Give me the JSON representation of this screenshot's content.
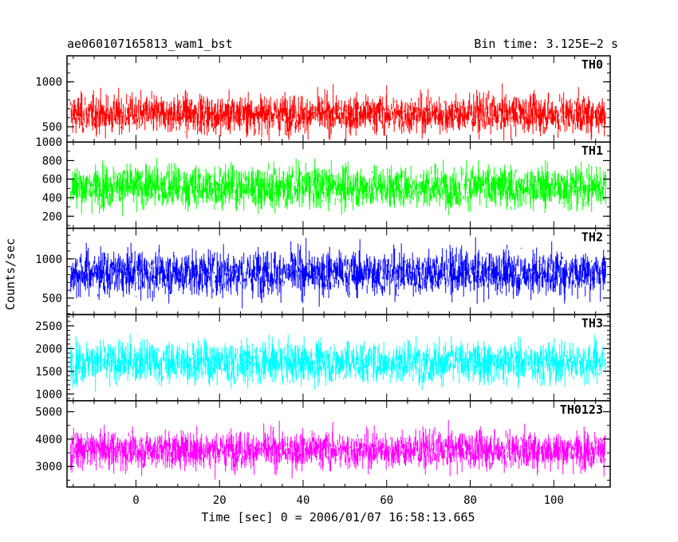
{
  "header": {
    "title": "ae060107165813_wam1_bst",
    "bin_time": "Bin time: 3.125E−2 s"
  },
  "chart_data": {
    "type": "line",
    "xlabel": "Time [sec] 0 = 2006/01/07 16:58:13.665",
    "ylabel": "Counts/sec",
    "xlim": [
      -16.5,
      113.5
    ],
    "x_data_range": [
      -15.6,
      112.4
    ],
    "xticks": [
      0,
      20,
      40,
      60,
      80,
      100
    ],
    "xtick_labels": [
      "0",
      "20",
      "40",
      "60",
      "80",
      "100"
    ],
    "x_minor_step": 5,
    "panels": [
      {
        "name": "TH0",
        "color": "#ff0000",
        "ylim": [
          330,
          1290
        ],
        "yticks": [
          500,
          1000
        ],
        "ytick_labels": [
          "500",
          "1000"
        ],
        "y_minor_step": 100,
        "center": 640,
        "spread": 150,
        "low": 340,
        "high": 1290
      },
      {
        "name": "TH1",
        "color": "#00ff00",
        "ylim": [
          70,
          1000
        ],
        "yticks": [
          200,
          400,
          600,
          800,
          1000
        ],
        "ytick_labels": [
          "200",
          "400",
          "600",
          "800",
          "1000"
        ],
        "y_minor_step": 100,
        "center": 520,
        "spread": 160,
        "low": 90,
        "high": 1000
      },
      {
        "name": "TH2",
        "color": "#0000ff",
        "ylim": [
          290,
          1390
        ],
        "yticks": [
          500,
          1000
        ],
        "ytick_labels": [
          "500",
          "1000"
        ],
        "y_minor_step": 100,
        "center": 820,
        "spread": 200,
        "low": 300,
        "high": 1390
      },
      {
        "name": "TH3",
        "color": "#00ffff",
        "ylim": [
          850,
          2750
        ],
        "yticks": [
          1000,
          1500,
          2000,
          2500
        ],
        "ytick_labels": [
          "1000",
          "1500",
          "2000",
          "2500"
        ],
        "y_minor_step": 100,
        "center": 1700,
        "spread": 320,
        "low": 870,
        "high": 2750
      },
      {
        "name": "TH0123",
        "color": "#ff00ff",
        "ylim": [
          2250,
          5400
        ],
        "yticks": [
          3000,
          4000,
          5000
        ],
        "ytick_labels": [
          "3000",
          "4000",
          "5000"
        ],
        "y_minor_step": 500,
        "center": 3600,
        "spread": 480,
        "low": 2300,
        "high": 5350
      }
    ]
  }
}
